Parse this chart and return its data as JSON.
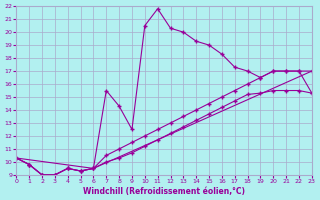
{
  "background_color": "#b2f0f0",
  "grid_color": "#aaaacc",
  "line_color": "#990099",
  "marker": "+",
  "xlabel": "Windchill (Refroidissement éolien,°C)",
  "xlim": [
    0,
    23
  ],
  "ylim": [
    9,
    22
  ],
  "yticks": [
    9,
    10,
    11,
    12,
    13,
    14,
    15,
    16,
    17,
    18,
    19,
    20,
    21,
    22
  ],
  "xticks": [
    0,
    1,
    2,
    3,
    4,
    5,
    6,
    7,
    8,
    9,
    10,
    11,
    12,
    13,
    14,
    15,
    16,
    17,
    18,
    19,
    20,
    21,
    22,
    23
  ],
  "line1_x": [
    0,
    1,
    2,
    3,
    4,
    5,
    6,
    7,
    8,
    9,
    10,
    11,
    12,
    13,
    14,
    15,
    16,
    17,
    18,
    19,
    20,
    21,
    22,
    23
  ],
  "line1_y": [
    10.3,
    9.8,
    9.0,
    9.0,
    9.5,
    9.3,
    9.5,
    15.5,
    14.3,
    12.5,
    20.5,
    21.8,
    20.3,
    20.0,
    19.3,
    19.0,
    18.3,
    17.3,
    17.0,
    16.5,
    17.0,
    17.0,
    17.0,
    15.3
  ],
  "line2_x": [
    0,
    1,
    2,
    3,
    4,
    5,
    6,
    7,
    8,
    9,
    10,
    11,
    12,
    13,
    14,
    15,
    16,
    17,
    18,
    19,
    20,
    21,
    22,
    23
  ],
  "line2_y": [
    10.3,
    9.8,
    9.0,
    9.0,
    9.5,
    9.3,
    9.5,
    10.5,
    11.0,
    11.5,
    12.0,
    12.5,
    13.0,
    13.5,
    14.0,
    14.5,
    15.0,
    15.5,
    16.0,
    16.5,
    17.0,
    17.0,
    17.0,
    17.0
  ],
  "line3_x": [
    0,
    1,
    2,
    3,
    4,
    5,
    6,
    7,
    8,
    9,
    10,
    11,
    12,
    13,
    14,
    15,
    16,
    17,
    18,
    19,
    20,
    21,
    22,
    23
  ],
  "line3_y": [
    10.3,
    9.8,
    9.0,
    9.0,
    9.5,
    9.3,
    9.5,
    10.0,
    10.3,
    10.7,
    11.2,
    11.7,
    12.2,
    12.7,
    13.2,
    13.7,
    14.2,
    14.7,
    15.2,
    15.3,
    15.5,
    15.5,
    15.5,
    15.3
  ],
  "line4_x": [
    0,
    6,
    23
  ],
  "line4_y": [
    10.3,
    9.5,
    17.0
  ]
}
